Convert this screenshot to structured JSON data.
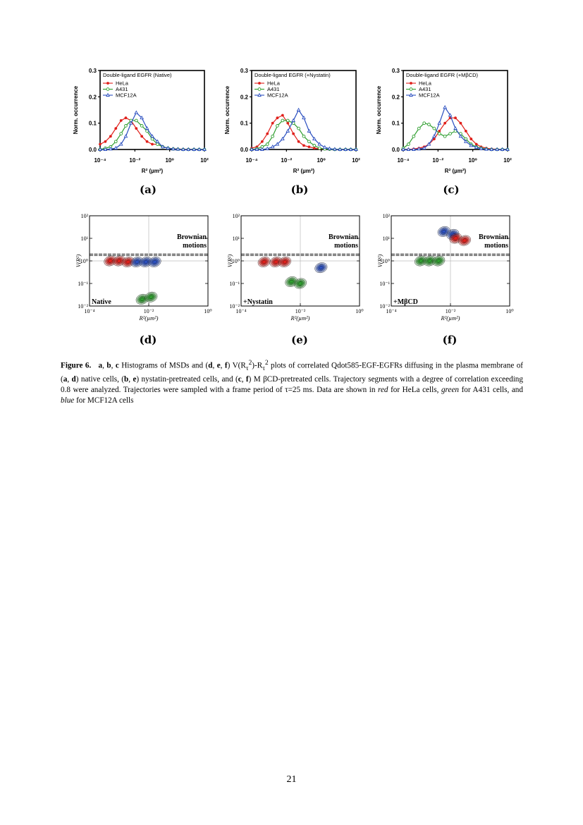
{
  "histograms": [
    {
      "panel_label": "(a)",
      "legend_title": "Double-ligand EGFR (Native)",
      "chart_data": {
        "type": "line",
        "xlabel": "R² (µm²)",
        "ylabel": "Norm. occurrence",
        "x_scale": "log",
        "xlim": [
          0.0001,
          100
        ],
        "ylim": [
          0,
          0.3
        ],
        "x_ticks": [
          "10⁻⁴",
          "10⁻²",
          "10⁰",
          "10²"
        ],
        "y_ticks": [
          "0.0",
          "0.1",
          "0.2",
          "0.3"
        ],
        "legend_position": "top-left",
        "series": [
          {
            "name": "HeLa",
            "color": "#e0201b",
            "marker": "filled-circle",
            "x": [
              0.0001,
              0.0002,
              0.0004,
              0.0008,
              0.0016,
              0.003,
              0.006,
              0.012,
              0.025,
              0.05,
              0.1,
              0.2,
              0.4,
              0.8,
              1.6,
              3,
              6,
              12,
              25,
              50,
              100
            ],
            "y": [
              0.02,
              0.03,
              0.05,
              0.08,
              0.11,
              0.12,
              0.11,
              0.08,
              0.05,
              0.03,
              0.02,
              0.02,
              0.01,
              0.005,
              0.003,
              0.002,
              0.001,
              0.001,
              0,
              0,
              0
            ]
          },
          {
            "name": "A431",
            "color": "#2e9e2e",
            "marker": "open-circle",
            "x": [
              0.0001,
              0.0002,
              0.0004,
              0.0008,
              0.0016,
              0.003,
              0.006,
              0.012,
              0.025,
              0.05,
              0.1,
              0.2,
              0.4,
              0.8,
              1.6,
              3,
              6,
              12,
              25,
              50,
              100
            ],
            "y": [
              0,
              0.005,
              0.01,
              0.03,
              0.06,
              0.09,
              0.11,
              0.11,
              0.09,
              0.07,
              0.04,
              0.02,
              0.01,
              0.005,
              0.002,
              0.001,
              0,
              0,
              0,
              0,
              0
            ]
          },
          {
            "name": "MCF12A",
            "color": "#2b4fc0",
            "marker": "open-triangle",
            "x": [
              0.0001,
              0.0002,
              0.0004,
              0.0008,
              0.0016,
              0.003,
              0.006,
              0.012,
              0.025,
              0.05,
              0.1,
              0.2,
              0.4,
              0.8,
              1.6,
              3,
              6,
              12,
              25,
              50,
              100
            ],
            "y": [
              0,
              0,
              0.002,
              0.005,
              0.02,
              0.05,
              0.1,
              0.14,
              0.12,
              0.08,
              0.05,
              0.03,
              0.01,
              0.005,
              0.002,
              0.001,
              0,
              0,
              0,
              0,
              0
            ]
          }
        ]
      }
    },
    {
      "panel_label": "(b)",
      "legend_title": "Double-ligand EGFR (+Nystatin)",
      "chart_data": {
        "type": "line",
        "xlabel": "R² (µm²)",
        "ylabel": "Norm. occurrence",
        "x_scale": "log",
        "xlim": [
          0.0001,
          100
        ],
        "ylim": [
          0,
          0.3
        ],
        "x_ticks": [
          "10⁻⁴",
          "10⁻²",
          "10⁰",
          "10²"
        ],
        "y_ticks": [
          "0.0",
          "0.1",
          "0.2",
          "0.3"
        ],
        "legend_position": "top-left",
        "series": [
          {
            "name": "HeLa",
            "color": "#e0201b",
            "marker": "filled-circle",
            "x": [
              0.0001,
              0.0002,
              0.0004,
              0.0008,
              0.0016,
              0.003,
              0.006,
              0.012,
              0.025,
              0.05,
              0.1,
              0.2,
              0.4,
              0.8,
              1.6,
              3,
              6,
              12,
              25,
              50,
              100
            ],
            "y": [
              0.005,
              0.01,
              0.03,
              0.06,
              0.1,
              0.12,
              0.13,
              0.1,
              0.06,
              0.03,
              0.015,
              0.01,
              0.005,
              0.003,
              0.002,
              0.001,
              0,
              0,
              0,
              0,
              0
            ]
          },
          {
            "name": "A431",
            "color": "#2e9e2e",
            "marker": "open-circle",
            "x": [
              0.0001,
              0.0002,
              0.0004,
              0.0008,
              0.0016,
              0.003,
              0.006,
              0.012,
              0.025,
              0.05,
              0.1,
              0.2,
              0.4,
              0.8,
              1.6,
              3,
              6,
              12,
              25,
              50,
              100
            ],
            "y": [
              0,
              0.003,
              0.01,
              0.02,
              0.05,
              0.09,
              0.11,
              0.11,
              0.1,
              0.08,
              0.05,
              0.03,
              0.015,
              0.005,
              0.002,
              0.001,
              0,
              0,
              0,
              0,
              0
            ]
          },
          {
            "name": "MCF12A",
            "color": "#2b4fc0",
            "marker": "open-triangle",
            "x": [
              0.0001,
              0.0002,
              0.0004,
              0.0008,
              0.0016,
              0.003,
              0.006,
              0.012,
              0.025,
              0.05,
              0.1,
              0.2,
              0.4,
              0.8,
              1.6,
              3,
              6,
              12,
              25,
              50,
              100
            ],
            "y": [
              0,
              0,
              0,
              0.003,
              0.01,
              0.02,
              0.04,
              0.07,
              0.11,
              0.15,
              0.12,
              0.07,
              0.04,
              0.02,
              0.008,
              0.003,
              0.001,
              0,
              0,
              0,
              0
            ]
          }
        ]
      }
    },
    {
      "panel_label": "(c)",
      "legend_title": "Double-ligand EGFR (+MβCD)",
      "chart_data": {
        "type": "line",
        "xlabel": "R² (µm²)",
        "ylabel": "Norm. occurrence",
        "x_scale": "log",
        "xlim": [
          0.0001,
          100
        ],
        "ylim": [
          0,
          0.3
        ],
        "x_ticks": [
          "10⁻⁴",
          "10⁻²",
          "10⁰",
          "10²"
        ],
        "y_ticks": [
          "0.0",
          "0.1",
          "0.2",
          "0.3"
        ],
        "legend_position": "top-left",
        "series": [
          {
            "name": "HeLa",
            "color": "#e0201b",
            "marker": "filled-circle",
            "x": [
              0.0001,
              0.0002,
              0.0004,
              0.0008,
              0.0016,
              0.003,
              0.006,
              0.012,
              0.025,
              0.05,
              0.1,
              0.2,
              0.4,
              0.8,
              1.6,
              3,
              6,
              12,
              25,
              50,
              100
            ],
            "y": [
              0,
              0,
              0.002,
              0.005,
              0.01,
              0.02,
              0.04,
              0.07,
              0.1,
              0.12,
              0.12,
              0.1,
              0.07,
              0.04,
              0.02,
              0.01,
              0.005,
              0.002,
              0.001,
              0,
              0
            ]
          },
          {
            "name": "A431",
            "color": "#2e9e2e",
            "marker": "open-circle",
            "x": [
              0.0001,
              0.0002,
              0.0004,
              0.0008,
              0.0016,
              0.003,
              0.006,
              0.012,
              0.025,
              0.05,
              0.1,
              0.2,
              0.4,
              0.8,
              1.6,
              3,
              6,
              12,
              25,
              50,
              100
            ],
            "y": [
              0.005,
              0.02,
              0.05,
              0.08,
              0.1,
              0.095,
              0.08,
              0.06,
              0.05,
              0.06,
              0.07,
              0.06,
              0.04,
              0.02,
              0.01,
              0.005,
              0.002,
              0,
              0,
              0,
              0
            ]
          },
          {
            "name": "MCF12A",
            "color": "#2b4fc0",
            "marker": "open-triangle",
            "x": [
              0.0001,
              0.0002,
              0.0004,
              0.0008,
              0.0016,
              0.003,
              0.006,
              0.012,
              0.025,
              0.05,
              0.1,
              0.2,
              0.4,
              0.8,
              1.6,
              3,
              6,
              12,
              25,
              50,
              100
            ],
            "y": [
              0,
              0,
              0,
              0.002,
              0.005,
              0.02,
              0.05,
              0.1,
              0.16,
              0.13,
              0.08,
              0.05,
              0.03,
              0.015,
              0.008,
              0.003,
              0.001,
              0,
              0,
              0,
              0
            ]
          }
        ]
      }
    }
  ],
  "contours": [
    {
      "panel_label": "(d)",
      "inset_label": "Native",
      "brownian_label_1": "Brownian",
      "brownian_label_2": "motions",
      "xlabel": "R²(µm²)",
      "ylabel": "V(R²)",
      "x_ticks": [
        "10⁻⁴",
        "10⁻²",
        "10⁰"
      ],
      "y_ticks": [
        "10²",
        "10¹",
        "10⁰",
        "10⁻¹",
        "10⁻²"
      ],
      "chart_data": {
        "type": "heatmap",
        "x_scale": "log",
        "y_scale": "log",
        "xlim": [
          0.0001,
          1
        ],
        "ylim": [
          0.01,
          100
        ],
        "brownian_threshold": 2,
        "clusters": [
          {
            "series": "HeLa",
            "color": "#e0201b",
            "lobes": [
              [
                0.0005,
                1.0
              ],
              [
                0.001,
                1.0
              ],
              [
                0.002,
                0.9
              ]
            ]
          },
          {
            "series": "MCF12A",
            "color": "#2b4fc0",
            "lobes": [
              [
                0.004,
                0.9
              ],
              [
                0.008,
                0.9
              ],
              [
                0.016,
                0.9
              ]
            ]
          },
          {
            "series": "A431",
            "color": "#2e9e2e",
            "lobes": [
              [
                0.006,
                0.02
              ],
              [
                0.012,
                0.025
              ]
            ]
          }
        ]
      }
    },
    {
      "panel_label": "(e)",
      "inset_label": "+Nystatin",
      "brownian_label_1": "Brownian",
      "brownian_label_2": "motions",
      "xlabel": "R²(µm²)",
      "ylabel": "V(R²)",
      "x_ticks": [
        "10⁻⁴",
        "10⁻²",
        "10⁰"
      ],
      "y_ticks": [
        "10²",
        "10¹",
        "10⁰",
        "10⁻¹",
        "10⁻²"
      ],
      "chart_data": {
        "type": "heatmap",
        "x_scale": "log",
        "y_scale": "log",
        "xlim": [
          0.0001,
          1
        ],
        "ylim": [
          0.01,
          100
        ],
        "brownian_threshold": 2,
        "clusters": [
          {
            "series": "HeLa",
            "color": "#e0201b",
            "lobes": [
              [
                0.0006,
                0.9
              ],
              [
                0.0015,
                0.9
              ],
              [
                0.003,
                0.9
              ]
            ]
          },
          {
            "series": "A431",
            "color": "#2e9e2e",
            "lobes": [
              [
                0.005,
                0.12
              ],
              [
                0.01,
                0.1
              ]
            ]
          },
          {
            "series": "MCF12A",
            "color": "#2b4fc0",
            "lobes": [
              [
                0.05,
                0.5
              ]
            ]
          }
        ]
      }
    },
    {
      "panel_label": "(f)",
      "inset_label": "+MβCD",
      "brownian_label_1": "Brownian",
      "brownian_label_2": "motions",
      "xlabel": "R²(µm²)",
      "ylabel": "V(R²)",
      "x_ticks": [
        "10⁻⁴",
        "10⁻²",
        "10⁰"
      ],
      "y_ticks": [
        "10²",
        "10¹",
        "10⁰",
        "10⁻¹",
        "10⁻²"
      ],
      "chart_data": {
        "type": "heatmap",
        "x_scale": "log",
        "y_scale": "log",
        "xlim": [
          0.0001,
          1
        ],
        "ylim": [
          0.01,
          100
        ],
        "brownian_threshold": 2,
        "clusters": [
          {
            "series": "A431",
            "color": "#2e9e2e",
            "lobes": [
              [
                0.001,
                1.0
              ],
              [
                0.002,
                1.0
              ],
              [
                0.004,
                1.0
              ]
            ]
          },
          {
            "series": "MCF12A",
            "color": "#2b4fc0",
            "lobes": [
              [
                0.006,
                20
              ],
              [
                0.012,
                15
              ]
            ]
          },
          {
            "series": "HeLa",
            "color": "#e0201b",
            "lobes": [
              [
                0.015,
                10
              ],
              [
                0.03,
                8
              ]
            ]
          }
        ]
      }
    }
  ],
  "caption": {
    "figure_label": "Figure 6.",
    "b1": "a",
    "b2": "b",
    "b3": "c",
    "t1": " Histograms of MSDs and (",
    "b4": "d",
    "b5": "e",
    "b6": "f",
    "t2": ") V(R",
    "t3": ")-R",
    "t4": " plots of correlated Qdot585-EGF-EGFRs diffusing in the plasma membrane of (",
    "t5": ") native cells, (",
    "t6": ") nystatin-pretreated cells, and (",
    "t7": ") M βCD-pretreated cells. Trajectory segments with a degree of correlation exceeding 0.8 were analyzed. Trajectories were sampled with a frame period of τ=25 ms. Data are shown in ",
    "red": "red",
    "t8": " for HeLa cells, ",
    "green": "green",
    "t9": " for A431 cells, and ",
    "blue": "blue",
    "t10": " for MCF12A cells",
    "sub": "τ",
    "sup": "2"
  },
  "page_number": "21"
}
